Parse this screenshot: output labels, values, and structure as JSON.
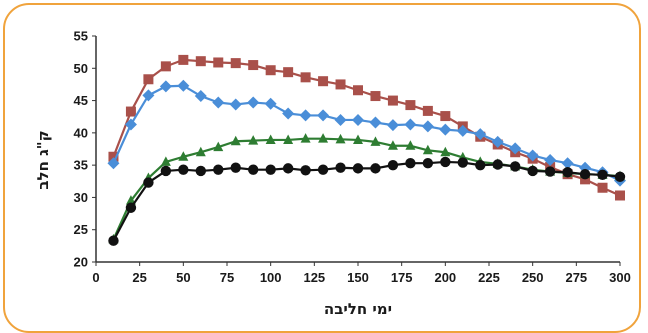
{
  "chart_data": {
    "type": "line",
    "title": "",
    "xlabel": "ימי חליבה",
    "ylabel": "ק\"ג חלב",
    "xlim": [
      0,
      300
    ],
    "ylim": [
      20,
      55
    ],
    "xticks": [
      0,
      25,
      50,
      75,
      100,
      125,
      150,
      175,
      200,
      225,
      250,
      275,
      300
    ],
    "yticks": [
      20,
      25,
      30,
      35,
      40,
      45,
      50,
      55
    ],
    "grid": false,
    "legend": "none",
    "series": [
      {
        "color": "#a9504a",
        "marker": "square",
        "x": [
          10,
          20,
          30,
          40,
          50,
          60,
          70,
          80,
          90,
          100,
          110,
          120,
          130,
          140,
          150,
          160,
          170,
          180,
          190,
          200,
          210,
          220,
          230,
          240,
          250,
          260,
          270,
          280,
          290,
          300
        ],
        "values": [
          36.3,
          43.3,
          48.3,
          50.3,
          51.3,
          51.1,
          50.9,
          50.8,
          50.5,
          49.7,
          49.4,
          48.6,
          48.0,
          47.5,
          46.6,
          45.7,
          45.0,
          44.3,
          43.4,
          42.6,
          41.0,
          39.4,
          38.2,
          37.0,
          36.0,
          34.7,
          33.6,
          32.8,
          31.5,
          30.3
        ]
      },
      {
        "color": "#4a8ed8",
        "marker": "diamond",
        "x": [
          10,
          20,
          30,
          40,
          50,
          60,
          70,
          80,
          90,
          100,
          110,
          120,
          130,
          140,
          150,
          160,
          170,
          180,
          190,
          200,
          210,
          220,
          230,
          240,
          250,
          260,
          270,
          280,
          290,
          300
        ],
        "values": [
          35.3,
          41.3,
          45.8,
          47.2,
          47.3,
          45.7,
          44.7,
          44.4,
          44.7,
          44.5,
          43.0,
          42.7,
          42.7,
          42.0,
          42.0,
          41.6,
          41.2,
          41.3,
          41.0,
          40.5,
          40.3,
          39.8,
          38.6,
          37.6,
          36.5,
          35.8,
          35.3,
          34.6,
          33.9,
          32.6
        ]
      },
      {
        "color": "#2e7d32",
        "marker": "triangle",
        "x": [
          10,
          20,
          30,
          40,
          50,
          60,
          70,
          80,
          90,
          100,
          110,
          120,
          130,
          140,
          150,
          160,
          170,
          180,
          190,
          200,
          210,
          220,
          230,
          240,
          250,
          260,
          270,
          280,
          290,
          300
        ],
        "values": [
          23.5,
          29.5,
          33.0,
          35.5,
          36.3,
          37.0,
          37.8,
          38.7,
          38.8,
          38.9,
          38.9,
          39.1,
          39.1,
          39.0,
          38.9,
          38.6,
          38.0,
          38.0,
          37.3,
          37.0,
          36.2,
          35.5,
          35.2,
          34.8,
          34.3,
          34.0,
          33.8,
          33.6,
          33.5,
          33.3
        ]
      },
      {
        "color": "#111111",
        "marker": "circle",
        "x": [
          10,
          20,
          30,
          40,
          50,
          60,
          70,
          80,
          90,
          100,
          110,
          120,
          130,
          140,
          150,
          160,
          170,
          180,
          190,
          200,
          210,
          220,
          230,
          240,
          250,
          260,
          270,
          280,
          290,
          300
        ],
        "values": [
          23.3,
          28.4,
          32.3,
          34.1,
          34.3,
          34.1,
          34.3,
          34.6,
          34.3,
          34.3,
          34.5,
          34.2,
          34.3,
          34.6,
          34.5,
          34.5,
          35.0,
          35.3,
          35.3,
          35.5,
          35.4,
          35.0,
          35.1,
          34.8,
          34.1,
          34.0,
          33.9,
          33.6,
          33.5,
          33.2
        ]
      }
    ]
  }
}
